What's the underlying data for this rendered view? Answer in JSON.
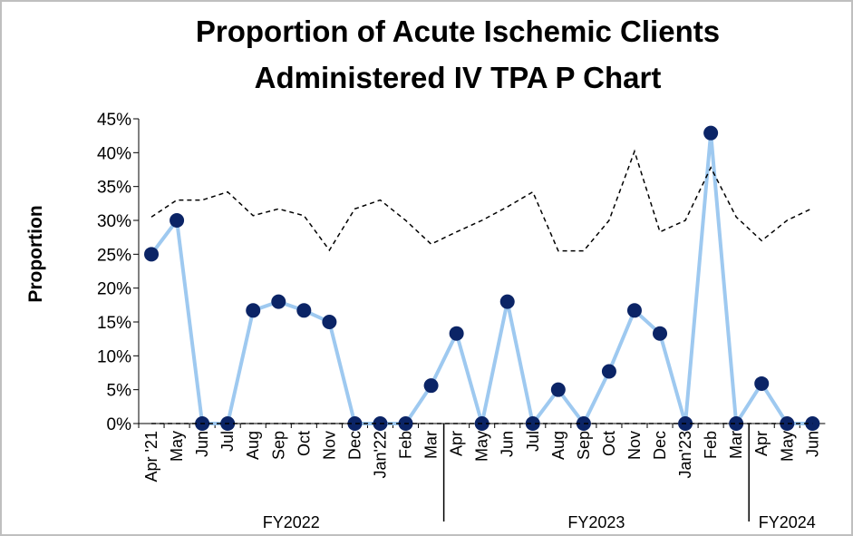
{
  "chart_data": {
    "type": "line",
    "title": [
      "Proportion of Acute Ischemic Clients",
      "Administered IV TPA P Chart"
    ],
    "y_label": "Proportion",
    "categories": [
      "Apr '21",
      "May",
      "Jun",
      "Jul",
      "Aug",
      "Sep",
      "Oct",
      "Nov",
      "Dec",
      "Jan'22",
      "Feb",
      "Mar",
      "Apr",
      "May",
      "Jun",
      "Jul",
      "Aug",
      "Sep",
      "Oct",
      "Nov",
      "Dec",
      "Jan'23",
      "Feb",
      "Mar",
      "Apr",
      "May",
      "Jun"
    ],
    "groups": [
      {
        "label": "FY2022",
        "span": 12
      },
      {
        "label": "FY2023",
        "span": 12
      },
      {
        "label": "FY2024",
        "span": 3
      }
    ],
    "series": [
      {
        "color": "#9ec9f0",
        "style": "solid-markers",
        "marker_color": "#0b2466",
        "values": [
          25,
          30,
          0,
          0,
          16.7,
          18,
          16.7,
          15,
          0,
          0,
          0,
          5.6,
          13.3,
          0,
          18,
          0,
          5,
          0,
          7.7,
          16.7,
          13.3,
          0,
          42.9,
          0,
          5.9,
          0,
          0
        ]
      },
      {
        "color": "#000000",
        "style": "dashed",
        "values": [
          30.5,
          33,
          33,
          34.2,
          30.7,
          31.7,
          30.7,
          25.6,
          31.7,
          33,
          30,
          26.5,
          28.3,
          30,
          32,
          34.2,
          25.5,
          25.5,
          30,
          40.2,
          28.3,
          30,
          37.8,
          30.5,
          27,
          30,
          31.8
        ]
      },
      {
        "color": "#000000",
        "style": "dashed",
        "values": [
          0,
          0,
          0,
          0,
          0,
          0,
          0,
          0,
          0,
          0,
          0,
          0,
          0,
          0,
          0,
          0,
          0,
          0,
          0,
          0,
          0,
          0,
          0,
          0,
          0,
          0,
          0
        ]
      }
    ],
    "ylim": [
      0,
      45
    ],
    "yticks": [
      {
        "value": 0,
        "label": "0%"
      },
      {
        "value": 5,
        "label": "5%"
      },
      {
        "value": 10,
        "label": "10%"
      },
      {
        "value": 15,
        "label": "15%"
      },
      {
        "value": 20,
        "label": "20%"
      },
      {
        "value": 25,
        "label": "25%"
      },
      {
        "value": 30,
        "label": "30%"
      },
      {
        "value": 35,
        "label": "35%"
      },
      {
        "value": 40,
        "label": "40%"
      },
      {
        "value": 45,
        "label": "45%"
      }
    ]
  }
}
